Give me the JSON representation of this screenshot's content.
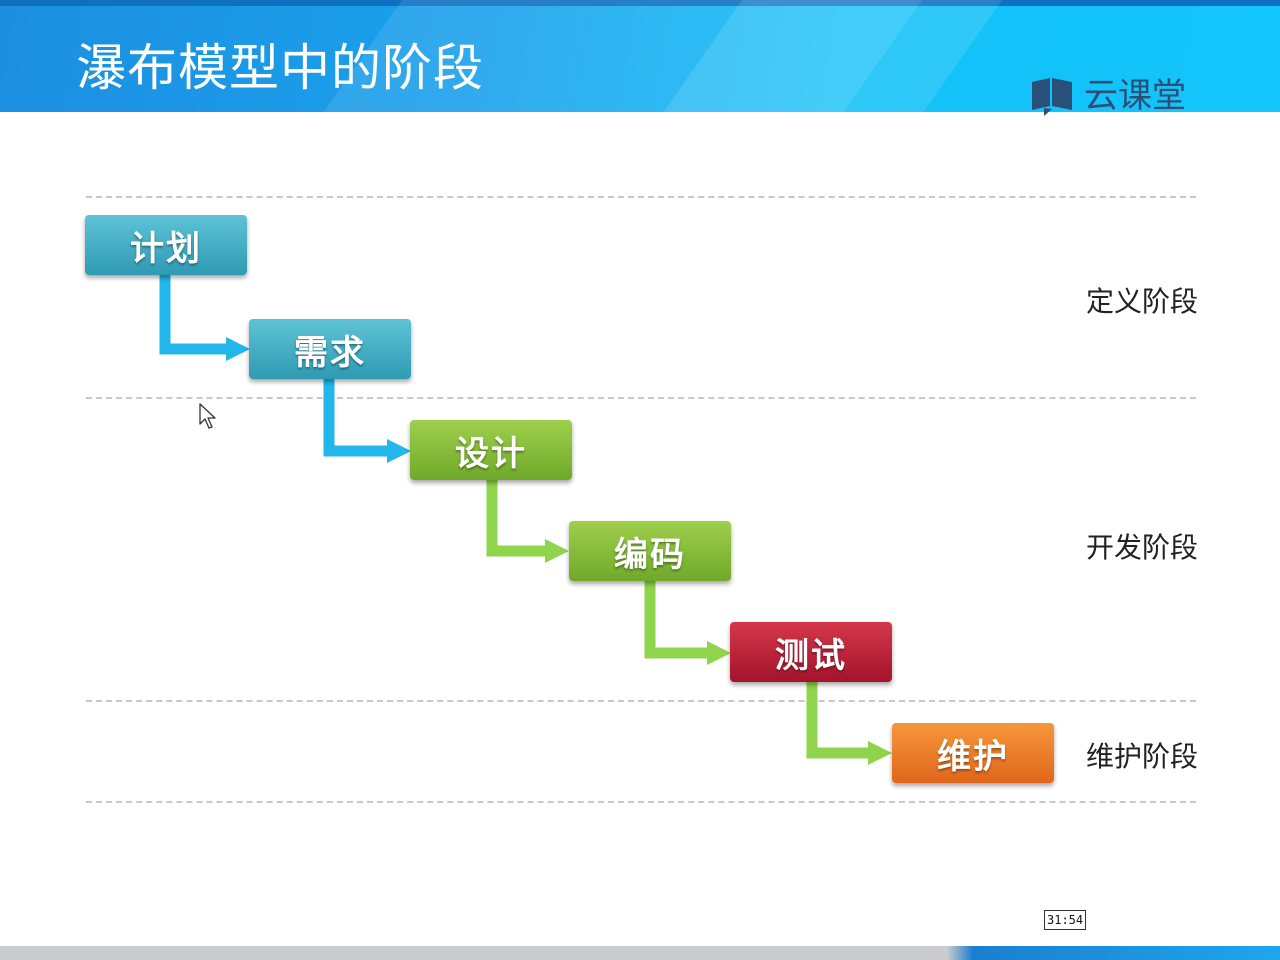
{
  "header": {
    "title": "瀑布模型中的阶段",
    "logo_text": "云课堂",
    "logo_icon": "book-icon"
  },
  "steps": [
    {
      "label": "计划",
      "color": "#3aa9c2"
    },
    {
      "label": "需求",
      "color": "#3aa9c2"
    },
    {
      "label": "设计",
      "color": "#80b935"
    },
    {
      "label": "编码",
      "color": "#80b935"
    },
    {
      "label": "测试",
      "color": "#b81f33"
    },
    {
      "label": "维护",
      "color": "#ec7d26"
    }
  ],
  "phases": [
    {
      "label": "定义阶段"
    },
    {
      "label": "开发阶段"
    },
    {
      "label": "维护阶段"
    }
  ],
  "arrow_colors": {
    "blue": "#22b6ea",
    "green": "#8fd44a"
  },
  "timestamp": "31:54"
}
